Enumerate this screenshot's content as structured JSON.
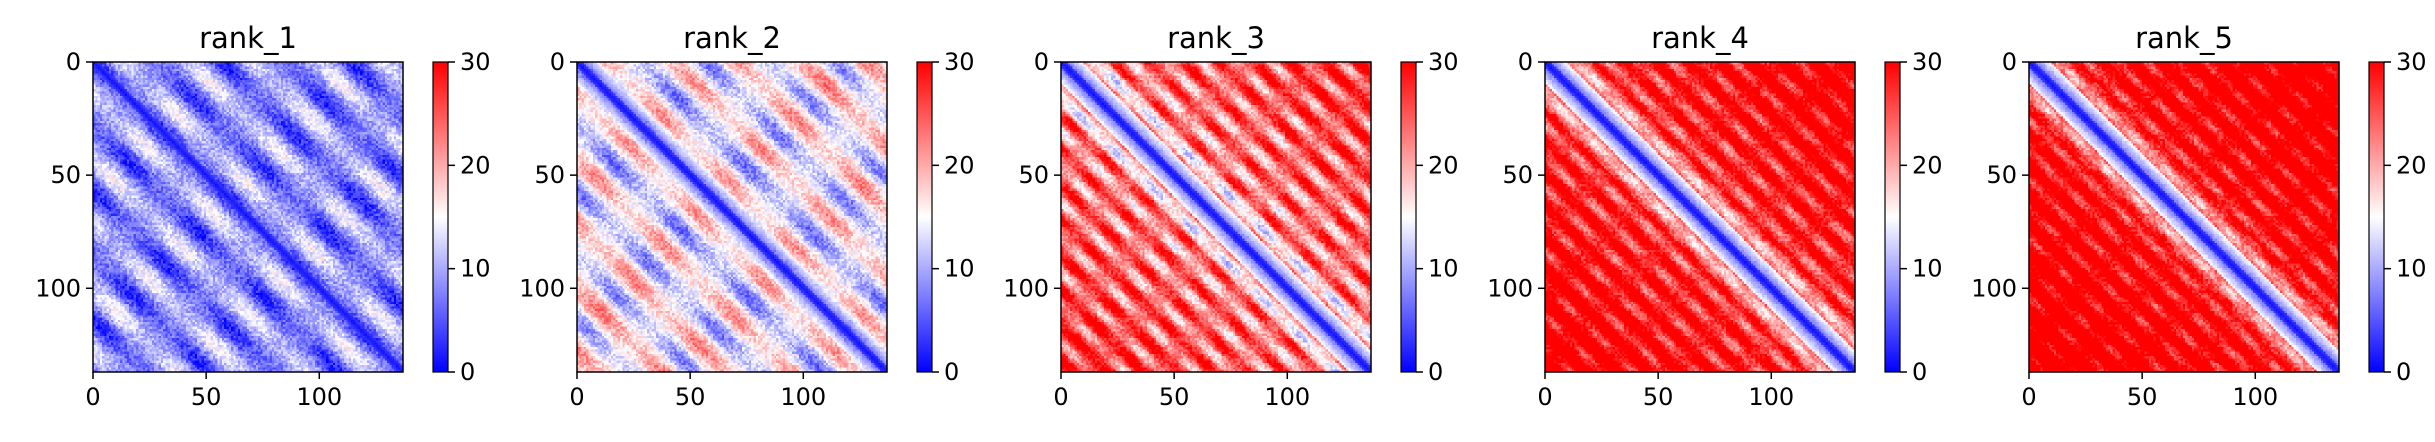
{
  "chart_data": [
    {
      "type": "heatmap",
      "title": "rank_1",
      "xlim": [
        0,
        137
      ],
      "ylim": [
        137,
        0
      ],
      "xticks": [
        0,
        50,
        100
      ],
      "yticks": [
        0,
        50,
        100
      ],
      "matrix_size": 137,
      "colorbar": {
        "min": 0,
        "max": 30,
        "ticks": [
          0,
          10,
          20,
          30
        ]
      },
      "colormap": [
        "#0000ff",
        "#ffffff",
        "#ff0000"
      ],
      "pattern": {
        "stripe_period": 28.5,
        "base": 8.5,
        "amp": 6.5,
        "growth": 0.0,
        "far": 0.0
      }
    },
    {
      "type": "heatmap",
      "title": "rank_2",
      "xlim": [
        0,
        137
      ],
      "ylim": [
        137,
        0
      ],
      "xticks": [
        0,
        50,
        100
      ],
      "yticks": [
        0,
        50,
        100
      ],
      "matrix_size": 137,
      "colorbar": {
        "min": 0,
        "max": 30,
        "ticks": [
          0,
          10,
          20,
          30
        ]
      },
      "colormap": [
        "#0000ff",
        "#ffffff",
        "#ff0000"
      ],
      "pattern": {
        "stripe_period": 28.5,
        "base": 13.5,
        "amp": 8.0,
        "growth": 0.02,
        "far": 0.0
      }
    },
    {
      "type": "heatmap",
      "title": "rank_3",
      "xlim": [
        0,
        137
      ],
      "ylim": [
        137,
        0
      ],
      "xticks": [
        0,
        50,
        100
      ],
      "yticks": [
        0,
        50,
        100
      ],
      "matrix_size": 137,
      "colorbar": {
        "min": 0,
        "max": 30,
        "ticks": [
          0,
          10,
          20,
          30
        ]
      },
      "colormap": [
        "#0000ff",
        "#ffffff",
        "#ff0000"
      ],
      "pattern": {
        "stripe_period": 15.5,
        "base": 18.5,
        "amp": 8.5,
        "growth": 0.04,
        "far": 3.0
      }
    },
    {
      "type": "heatmap",
      "title": "rank_4",
      "xlim": [
        0,
        137
      ],
      "ylim": [
        137,
        0
      ],
      "xticks": [
        0,
        50,
        100
      ],
      "yticks": [
        0,
        50,
        100
      ],
      "matrix_size": 137,
      "colorbar": {
        "min": 0,
        "max": 30,
        "ticks": [
          0,
          10,
          20,
          30
        ]
      },
      "colormap": [
        "#0000ff",
        "#ffffff",
        "#ff0000"
      ],
      "pattern": {
        "stripe_period": 14.0,
        "base": 22.0,
        "amp": 7.0,
        "growth": 0.05,
        "far": 4.0
      }
    },
    {
      "type": "heatmap",
      "title": "rank_5",
      "xlim": [
        0,
        137
      ],
      "ylim": [
        137,
        0
      ],
      "xticks": [
        0,
        50,
        100
      ],
      "yticks": [
        0,
        50,
        100
      ],
      "matrix_size": 137,
      "colorbar": {
        "min": 0,
        "max": 30,
        "ticks": [
          0,
          10,
          20,
          30
        ]
      },
      "colormap": [
        "#0000ff",
        "#ffffff",
        "#ff0000"
      ],
      "pattern": {
        "stripe_period": 13.0,
        "base": 23.5,
        "amp": 6.5,
        "growth": 0.05,
        "far": 4.5
      }
    }
  ]
}
